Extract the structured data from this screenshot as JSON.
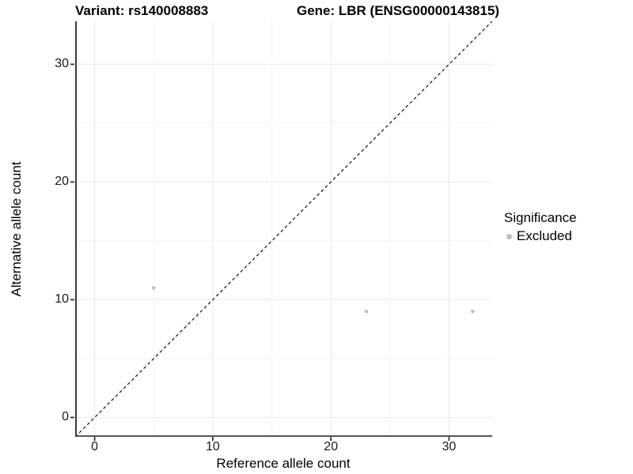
{
  "chart_data": {
    "type": "scatter",
    "title_variant": "Variant: rs140008883",
    "title_gene": "Gene: LBR (ENSG00000143815)",
    "xlabel": "Reference allele count",
    "ylabel": "Alternative allele count",
    "xlim": [
      -1.65,
      33.65
    ],
    "ylim": [
      -1.65,
      33.65
    ],
    "x_ticks": [
      0,
      10,
      20,
      30
    ],
    "y_ticks": [
      0,
      10,
      20,
      30
    ],
    "x_minor_ticks": [
      5,
      15,
      25
    ],
    "y_minor_ticks": [
      5,
      15,
      25
    ],
    "grid": "major+minor",
    "identity_line": {
      "slope": 1,
      "intercept": 0,
      "style": "dashed"
    },
    "series": [
      {
        "name": "Excluded",
        "color": "#bebebe",
        "points": [
          {
            "x": 5,
            "y": 11
          },
          {
            "x": 23,
            "y": 9
          },
          {
            "x": 32,
            "y": 9
          }
        ]
      }
    ],
    "legend": {
      "title": "Significance",
      "position": "right",
      "items": [
        {
          "label": "Excluded",
          "color": "#bebebe"
        }
      ]
    }
  },
  "colors": {
    "grid_major": "#e9e9e9",
    "grid_minor": "#f4f4f4",
    "axis_left": "#3b3b3b",
    "axis_bottom": "#565656",
    "tick_mark": "#333333",
    "identity_line": "#111111",
    "point": "#bebebe"
  }
}
